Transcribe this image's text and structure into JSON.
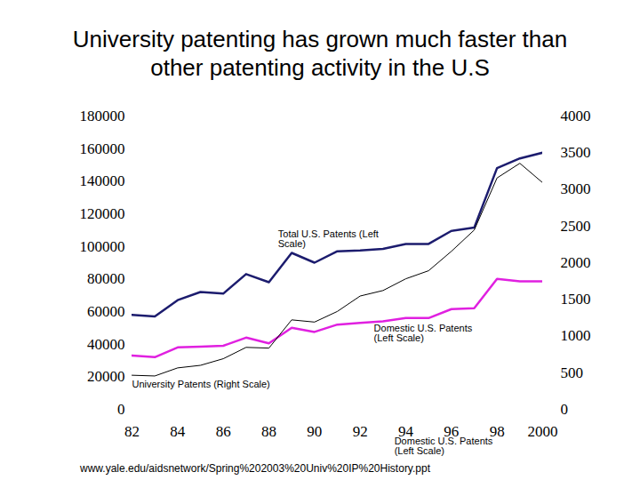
{
  "chart_data": {
    "type": "line",
    "title": "University patenting has grown much faster than other patenting activity in the U.S",
    "x": [
      1982,
      1983,
      1984,
      1985,
      1986,
      1987,
      1988,
      1989,
      1990,
      1991,
      1992,
      1993,
      1994,
      1995,
      1996,
      1997,
      1998,
      1999,
      2000
    ],
    "xlim": [
      1982,
      2000
    ],
    "xticks": [
      {
        "value": 1982,
        "label": "82"
      },
      {
        "value": 1984,
        "label": "84"
      },
      {
        "value": 1986,
        "label": "86"
      },
      {
        "value": 1988,
        "label": "88"
      },
      {
        "value": 1990,
        "label": "90"
      },
      {
        "value": 1992,
        "label": "92"
      },
      {
        "value": 1994,
        "label": "94"
      },
      {
        "value": 1996,
        "label": "96"
      },
      {
        "value": 1998,
        "label": "98"
      },
      2000
    ],
    "ylim": [
      0,
      180000
    ],
    "yticks": [
      0,
      20000,
      40000,
      60000,
      80000,
      100000,
      120000,
      140000,
      160000,
      180000
    ],
    "y2lim": [
      0,
      4000
    ],
    "y2ticks": [
      0,
      500,
      1000,
      1500,
      2000,
      2500,
      3000,
      3500,
      4000
    ],
    "series": [
      {
        "name": "Total U.S. Patents (Left Scale)",
        "color": "#1c1c6e",
        "label_x": 1988.4,
        "label_y": 110000,
        "values": [
          58000,
          57000,
          67000,
          72000,
          71000,
          83000,
          78000,
          96000,
          90000,
          97000,
          97500,
          98500,
          101500,
          101500,
          109500,
          111500,
          148000,
          154000,
          157500
        ]
      },
      {
        "name": "Domestic U.S. Patents (Left Scale)",
        "color": "#e020e0",
        "label_x": 1992.6,
        "label_y": 51800,
        "values": [
          33000,
          32000,
          38000,
          38500,
          39000,
          44000,
          40500,
          50000,
          47500,
          52000,
          53000,
          54000,
          56000,
          56000,
          61500,
          62000,
          80000,
          78500,
          78500
        ]
      },
      {
        "name": "University Patents (Right Scale)",
        "color": "#000000",
        "axis": "y2",
        "label_x": 1982,
        "label_y": 389,
        "values": [
          465,
          455,
          565,
          600,
          690,
          845,
          835,
          1220,
          1190,
          1335,
          1545,
          1620,
          1780,
          1890,
          2155,
          2445,
          3155,
          3355,
          3090
        ]
      }
    ],
    "annotations": [
      {
        "text": "Domestic U.S. Patents (Left Scale)",
        "x": 1993.5,
        "y": -17500
      }
    ],
    "source": "www.yale.edu/aidsnetwork/Spring%202003%20Univ%20IP%20History.ppt"
  }
}
